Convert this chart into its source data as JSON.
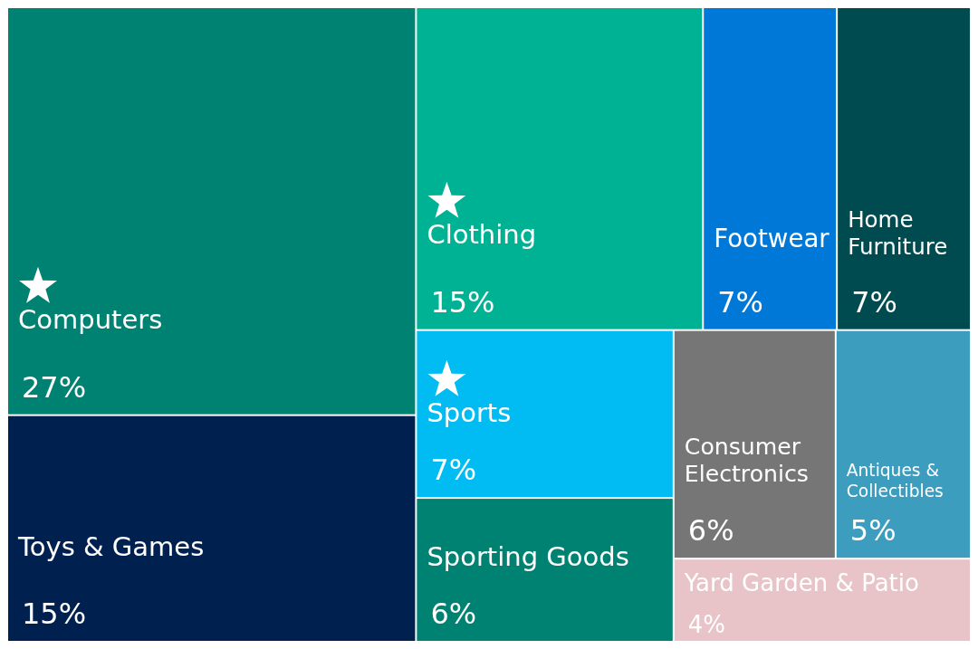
{
  "chart_data": {
    "type": "other",
    "categories": [
      "Computers",
      "Toys & Games",
      "Clothing",
      "Footwear",
      "Home Furniture",
      "Sports",
      "Sporting Goods",
      "Consumer Electronics",
      "Antiques & Collectibles",
      "Yard Garden & Patio"
    ],
    "values": [
      27,
      15,
      15,
      7,
      7,
      7,
      6,
      6,
      5,
      4
    ],
    "value_labels": [
      "27%",
      "15%",
      "15%",
      "7%",
      "7%",
      "7%",
      "6%",
      "6%",
      "5%",
      "4%"
    ],
    "colors": [
      "#008272",
      "#002050",
      "#00b294",
      "#0078d7",
      "#004b50",
      "#00bcf2",
      "#008272",
      "#767676",
      "#3c9dbf",
      "#e8c4c8"
    ]
  }
}
